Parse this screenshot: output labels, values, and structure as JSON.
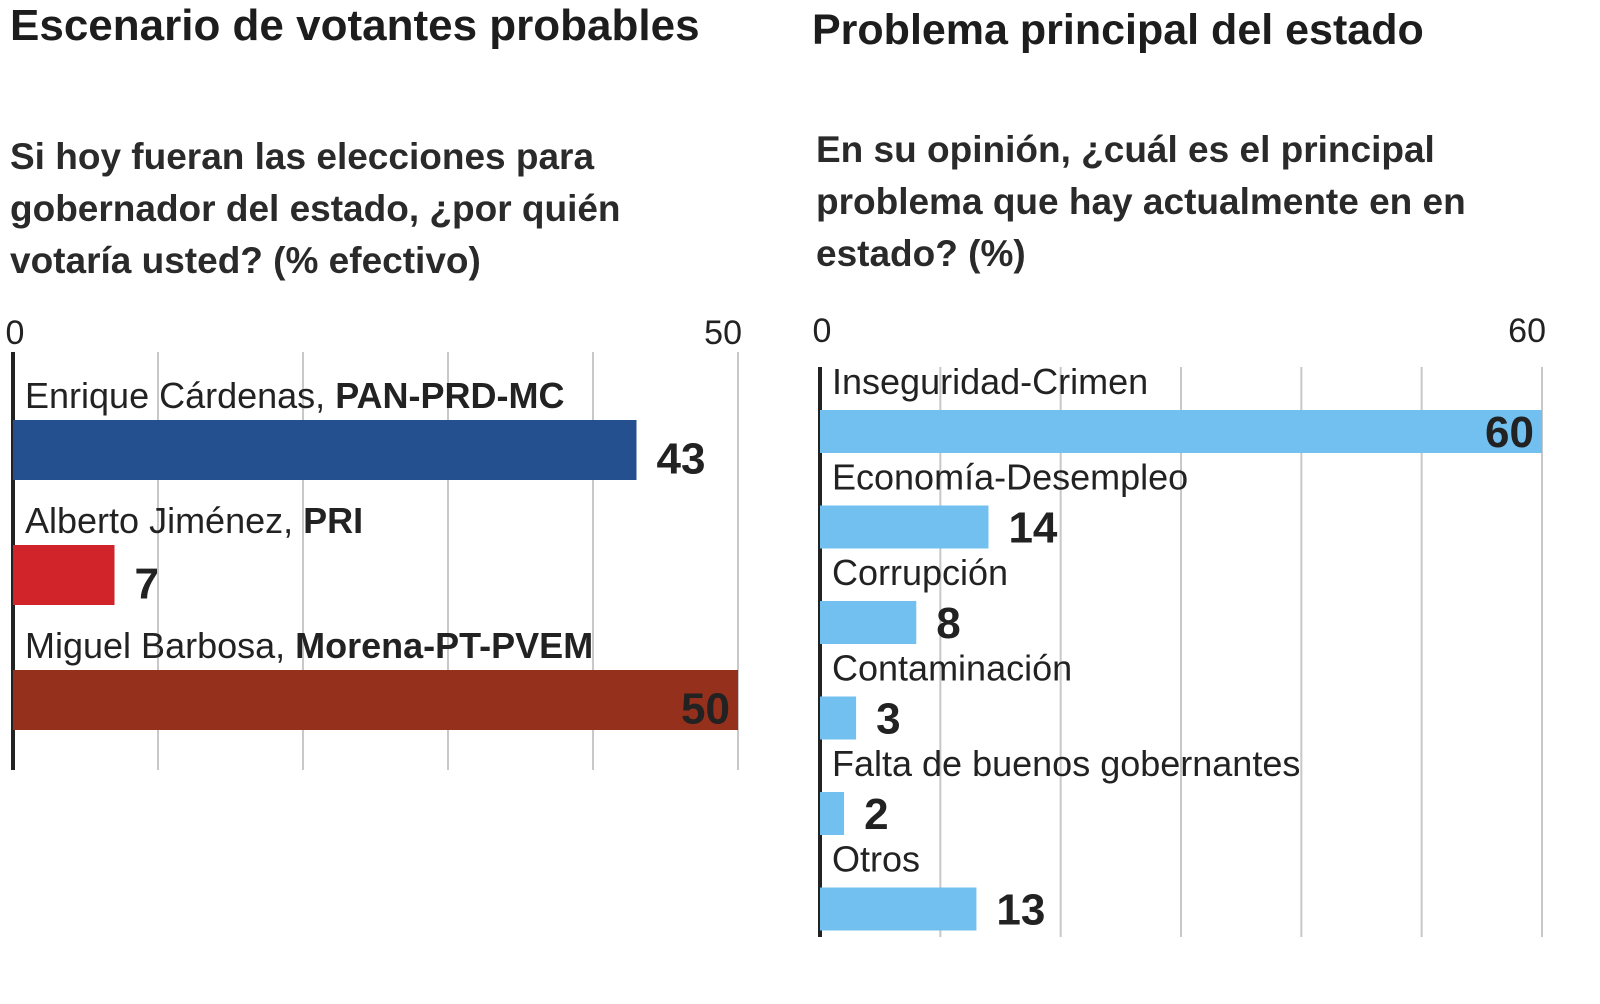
{
  "chart_data": [
    {
      "type": "bar",
      "title": "Escenario de votantes probables",
      "subtitle": "Si hoy fueran las elecciones para gobernador del estado, ¿por quién votaría usted? (% efectivo)",
      "categories": [
        "Enrique Cárdenas,",
        "Alberto Jiménez,",
        "Miguel Barbosa,"
      ],
      "parties": [
        "PAN-PRD-MC",
        "PRI",
        "Morena-PT-PVEM"
      ],
      "values": [
        43,
        7,
        50
      ],
      "colors": [
        "#24508f",
        "#d0232a",
        "#94301b"
      ],
      "xlim": [
        0,
        50
      ],
      "xticks": [
        0,
        50
      ],
      "minor_xticks": [
        10,
        20,
        30,
        40
      ],
      "grid": true
    },
    {
      "type": "bar",
      "title": "Problema principal del estado",
      "subtitle": "En su opinión, ¿cuál es el principal problema que hay actualmente en en estado? (%)",
      "categories": [
        "Inseguridad-Crimen",
        "Economía-Desempleo",
        "Corrupción",
        "Contaminación",
        "Falta de buenos gobernantes",
        "Otros"
      ],
      "values": [
        60,
        14,
        8,
        3,
        2,
        13
      ],
      "colors": [
        "#72c0ef",
        "#72c0ef",
        "#72c0ef",
        "#72c0ef",
        "#72c0ef",
        "#72c0ef"
      ],
      "xlim": [
        0,
        60
      ],
      "xticks": [
        0,
        60
      ],
      "minor_xticks": [
        10,
        20,
        30,
        40,
        50
      ],
      "grid": true
    }
  ]
}
